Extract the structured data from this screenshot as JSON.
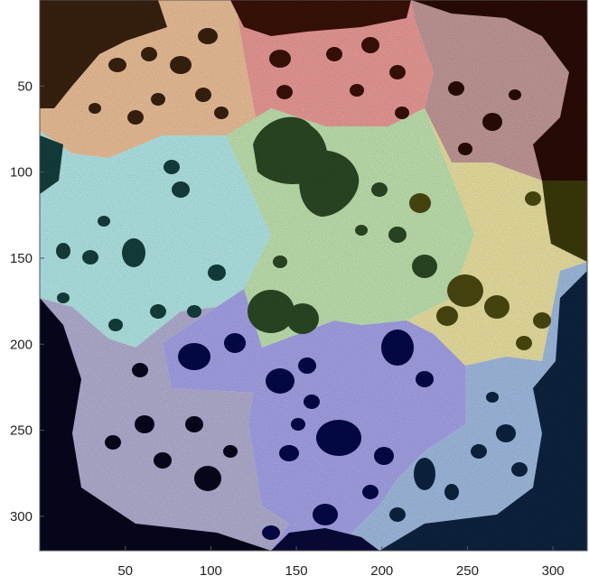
{
  "figure": {
    "type": "segmented-image",
    "x_ticks": [
      "50",
      "100",
      "150",
      "200",
      "250",
      "300"
    ],
    "y_ticks": [
      "50",
      "100",
      "150",
      "200",
      "250",
      "300"
    ],
    "x_range": [
      0,
      320
    ],
    "y_range": [
      0,
      320
    ],
    "regions": [
      {
        "id": "peach",
        "color": "#f1c49c"
      },
      {
        "id": "pink",
        "color": "#ef9e9a"
      },
      {
        "id": "mauve",
        "color": "#c79c9c"
      },
      {
        "id": "cyan",
        "color": "#b6ecec"
      },
      {
        "id": "light-green",
        "color": "#c4e8b4"
      },
      {
        "id": "yellow",
        "color": "#efe6a4"
      },
      {
        "id": "lavender",
        "color": "#b6b2d6"
      },
      {
        "id": "blue",
        "color": "#a8a6ec"
      },
      {
        "id": "light-blue",
        "color": "#a4c0e6"
      }
    ]
  }
}
